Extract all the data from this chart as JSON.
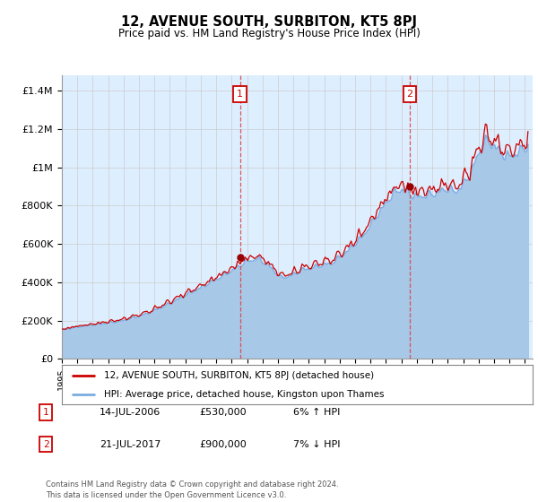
{
  "title": "12, AVENUE SOUTH, SURBITON, KT5 8PJ",
  "subtitle": "Price paid vs. HM Land Registry's House Price Index (HPI)",
  "ylabel_ticks": [
    "£0",
    "£200K",
    "£400K",
    "£600K",
    "£800K",
    "£1M",
    "£1.2M",
    "£1.4M"
  ],
  "ytick_values": [
    0,
    200000,
    400000,
    600000,
    800000,
    1000000,
    1200000,
    1400000
  ],
  "ylim": [
    0,
    1480000
  ],
  "xlim_start": 1995.0,
  "xlim_end": 2025.5,
  "hpi_color": "#a8c8e8",
  "hpi_line_color": "#7aace0",
  "price_color": "#cc0000",
  "sale1_x": 2006.54,
  "sale1_y": 530000,
  "sale2_x": 2017.54,
  "sale2_y": 900000,
  "legend_line1": "12, AVENUE SOUTH, SURBITON, KT5 8PJ (detached house)",
  "legend_line2": "HPI: Average price, detached house, Kingston upon Thames",
  "ann1_label": "1",
  "ann1_date": "14-JUL-2006",
  "ann1_price": "£530,000",
  "ann1_hpi": "6% ↑ HPI",
  "ann2_label": "2",
  "ann2_date": "21-JUL-2017",
  "ann2_price": "£900,000",
  "ann2_hpi": "7% ↓ HPI",
  "footer": "Contains HM Land Registry data © Crown copyright and database right 2024.\nThis data is licensed under the Open Government Licence v3.0.",
  "fig_bg_color": "#ffffff",
  "plot_bg_color": "#ddeeff"
}
